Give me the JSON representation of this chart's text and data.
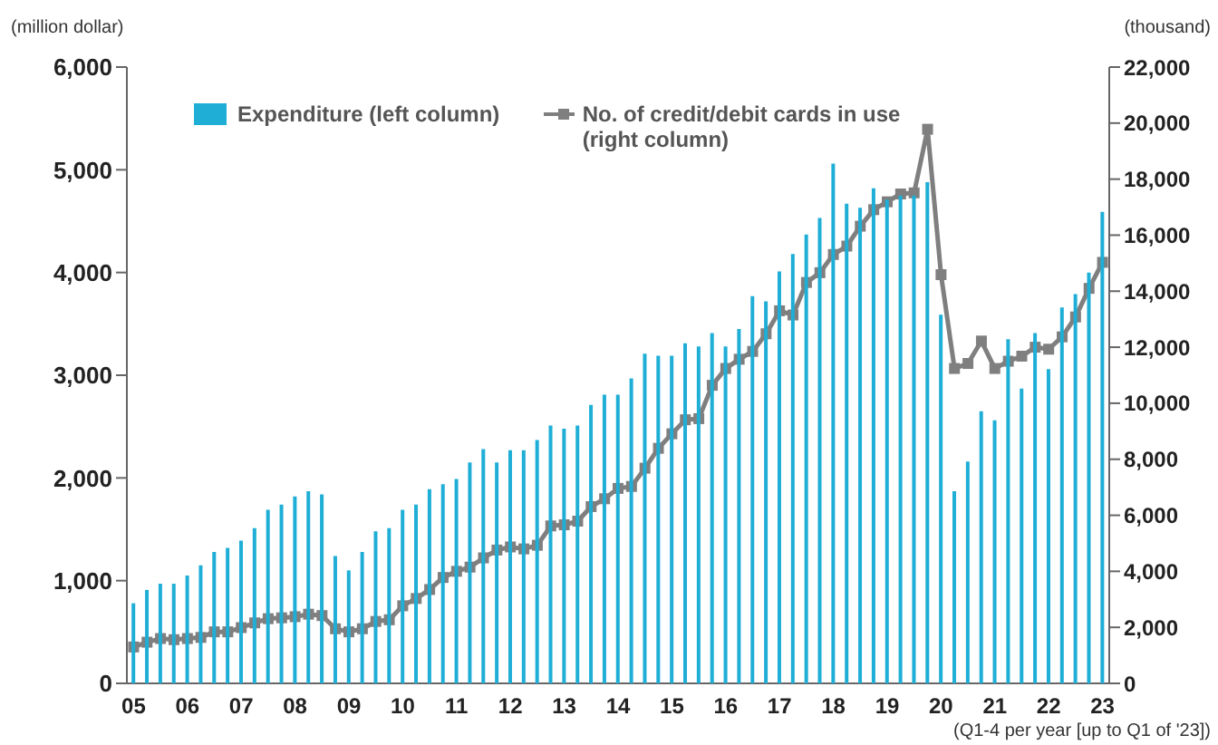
{
  "chart_data": {
    "type": "bar",
    "ylabel": "(million dollar)",
    "y2label": "(thousand)",
    "categories": [
      "05",
      null,
      null,
      null,
      "06",
      null,
      null,
      null,
      "07",
      null,
      null,
      null,
      "08",
      null,
      null,
      null,
      "09",
      null,
      null,
      null,
      "10",
      null,
      null,
      null,
      "11",
      null,
      null,
      null,
      "12",
      null,
      null,
      null,
      "13",
      null,
      null,
      null,
      "14",
      null,
      null,
      null,
      "15",
      null,
      null,
      null,
      "16",
      null,
      null,
      null,
      "17",
      null,
      null,
      null,
      "18",
      null,
      null,
      null,
      "19",
      null,
      null,
      null,
      "20",
      null,
      null,
      null,
      "21",
      null,
      null,
      null,
      "22",
      null,
      null,
      null,
      "23"
    ],
    "series": [
      {
        "name": "Expenditure (left column)",
        "color": "#1eaed6",
        "values": [
          780,
          910,
          970,
          970,
          1050,
          1150,
          1280,
          1320,
          1390,
          1510,
          1690,
          1740,
          1820,
          1870,
          1840,
          1240,
          1100,
          1280,
          1480,
          1510,
          1690,
          1740,
          1890,
          1940,
          1990,
          2150,
          2280,
          2150,
          2270,
          2270,
          2370,
          2510,
          2480,
          2510,
          2710,
          2810,
          2810,
          2970,
          3210,
          3190,
          3190,
          3310,
          3280,
          3410,
          3280,
          3450,
          3770,
          3720,
          4010,
          4180,
          4370,
          4530,
          5060,
          4670,
          4630,
          4820,
          4710,
          4750,
          4750,
          4880,
          3590,
          1870,
          2160,
          2650,
          2560,
          3350,
          2870,
          3410,
          3060,
          3660,
          3790,
          4000,
          4590
        ]
      },
      {
        "name": "No. of credit/debit cards in use (right column)",
        "type": "line",
        "axis": "y2",
        "color": "#7f7f7f",
        "marker": "square",
        "values": [
          1300,
          1470,
          1600,
          1560,
          1600,
          1640,
          1840,
          1840,
          1990,
          2160,
          2310,
          2340,
          2380,
          2470,
          2420,
          1950,
          1840,
          1950,
          2210,
          2270,
          2770,
          3030,
          3350,
          3780,
          4000,
          4150,
          4480,
          4760,
          4870,
          4800,
          4930,
          5620,
          5660,
          5790,
          6310,
          6590,
          6960,
          7030,
          7680,
          8390,
          8910,
          9410,
          9450,
          10640,
          11240,
          11570,
          11850,
          12480,
          13300,
          13150,
          14310,
          14660,
          15310,
          15610,
          16320,
          16910,
          17190,
          17470,
          17510,
          19780,
          14590,
          11240,
          11420,
          12220,
          11240,
          11500,
          11680,
          12000,
          11930,
          12370,
          13080,
          14100,
          15030
        ]
      }
    ],
    "ylim": [
      0,
      6000
    ],
    "yticks": [
      0,
      {
        "value": 1000,
        "label": "1,000"
      },
      {
        "value": 2000,
        "label": "2,000"
      },
      {
        "value": 3000,
        "label": "3,000"
      },
      {
        "value": 4000,
        "label": "4,000"
      },
      {
        "value": 5000,
        "label": "5,000"
      },
      {
        "value": 6000,
        "label": "6,000"
      }
    ],
    "y2lim": [
      0,
      22000
    ],
    "y2ticks": [
      0,
      {
        "value": 2000,
        "label": "2,000"
      },
      {
        "value": 4000,
        "label": "4,000"
      },
      {
        "value": 6000,
        "label": "6,000"
      },
      {
        "value": 8000,
        "label": "8,000"
      },
      {
        "value": 10000,
        "label": "10,000"
      },
      {
        "value": 12000,
        "label": "12,000"
      },
      {
        "value": 14000,
        "label": "14,000"
      },
      {
        "value": 16000,
        "label": "16,000"
      },
      {
        "value": 18000,
        "label": "18,000"
      },
      {
        "value": 20000,
        "label": "20,000"
      },
      {
        "value": 22000,
        "label": "22,000"
      }
    ],
    "legend": "top left",
    "annotations": [
      "(Q1-4 per year [up to Q1 of '23])"
    ]
  }
}
